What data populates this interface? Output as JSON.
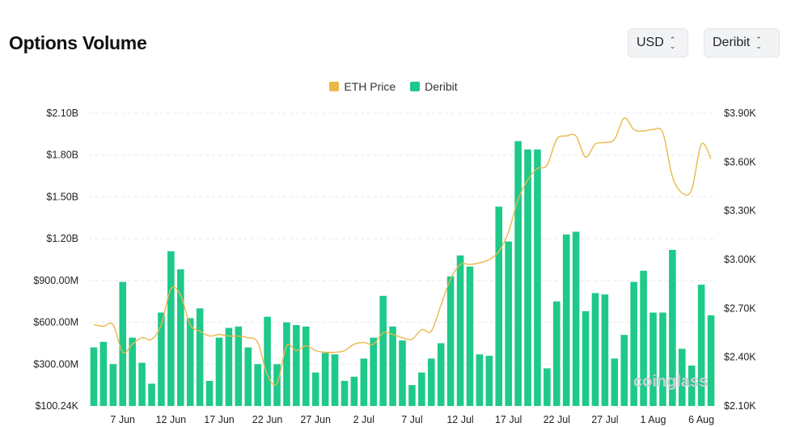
{
  "header": {
    "title": "Options Volume",
    "currency_select": "USD",
    "exchange_select": "Deribit"
  },
  "legend": [
    {
      "label": "ETH Price",
      "color": "#e9b949"
    },
    {
      "label": "Deribit",
      "color": "#1ec98a"
    }
  ],
  "watermark": "coinglass",
  "chart_data": {
    "type": "bar",
    "x_tick_labels": [
      "7 Jun",
      "12 Jun",
      "17 Jun",
      "22 Jun",
      "27 Jun",
      "2 Jul",
      "7 Jul",
      "12 Jul",
      "17 Jul",
      "22 Jul",
      "27 Jul",
      "1 Aug",
      "6 Aug"
    ],
    "left_axis": {
      "tick_labels": [
        "$100.24K",
        "$300.00M",
        "$600.00M",
        "$900.00M",
        "$1.20B",
        "$1.50B",
        "$1.80B",
        "$2.10B"
      ],
      "range": [
        0,
        2100000000
      ]
    },
    "right_axis": {
      "tick_labels": [
        "$2.10K",
        "$2.40K",
        "$2.70K",
        "$3.00K",
        "$3.30K",
        "$3.60K",
        "$3.90K"
      ],
      "range": [
        2100,
        3900
      ]
    },
    "grid": true,
    "legend_position": "top-center",
    "series": [
      {
        "name": "Deribit",
        "type": "bar",
        "axis": "left",
        "color": "#1ec98a",
        "values": [
          420000000,
          460000000,
          300000000,
          890000000,
          490000000,
          310000000,
          160000000,
          670000000,
          1110000000,
          980000000,
          630000000,
          700000000,
          180000000,
          490000000,
          560000000,
          570000000,
          420000000,
          300000000,
          640000000,
          300000000,
          600000000,
          580000000,
          570000000,
          240000000,
          380000000,
          370000000,
          180000000,
          210000000,
          340000000,
          490000000,
          790000000,
          570000000,
          470000000,
          150000000,
          240000000,
          340000000,
          450000000,
          930000000,
          1080000000,
          1000000000,
          370000000,
          360000000,
          1430000000,
          1180000000,
          1900000000,
          1840000000,
          1840000000,
          270000000,
          750000000,
          1230000000,
          1250000000,
          680000000,
          810000000,
          800000000,
          340000000,
          510000000,
          890000000,
          970000000,
          670000000,
          670000000,
          1120000000,
          410000000,
          290000000,
          870000000,
          650000000
        ]
      },
      {
        "name": "ETH Price",
        "type": "line",
        "axis": "right",
        "color": "#e9b949",
        "values": [
          2600,
          2590,
          2600,
          2430,
          2480,
          2520,
          2510,
          2600,
          2820,
          2780,
          2600,
          2560,
          2530,
          2540,
          2530,
          2530,
          2520,
          2490,
          2290,
          2240,
          2470,
          2440,
          2470,
          2440,
          2430,
          2430,
          2440,
          2480,
          2490,
          2480,
          2550,
          2540,
          2520,
          2510,
          2570,
          2560,
          2720,
          2880,
          2970,
          2970,
          2980,
          3000,
          3050,
          3170,
          3370,
          3490,
          3560,
          3580,
          3740,
          3760,
          3760,
          3630,
          3710,
          3720,
          3740,
          3870,
          3800,
          3790,
          3800,
          3780,
          3510,
          3410,
          3430,
          3710,
          3620
        ]
      }
    ]
  }
}
